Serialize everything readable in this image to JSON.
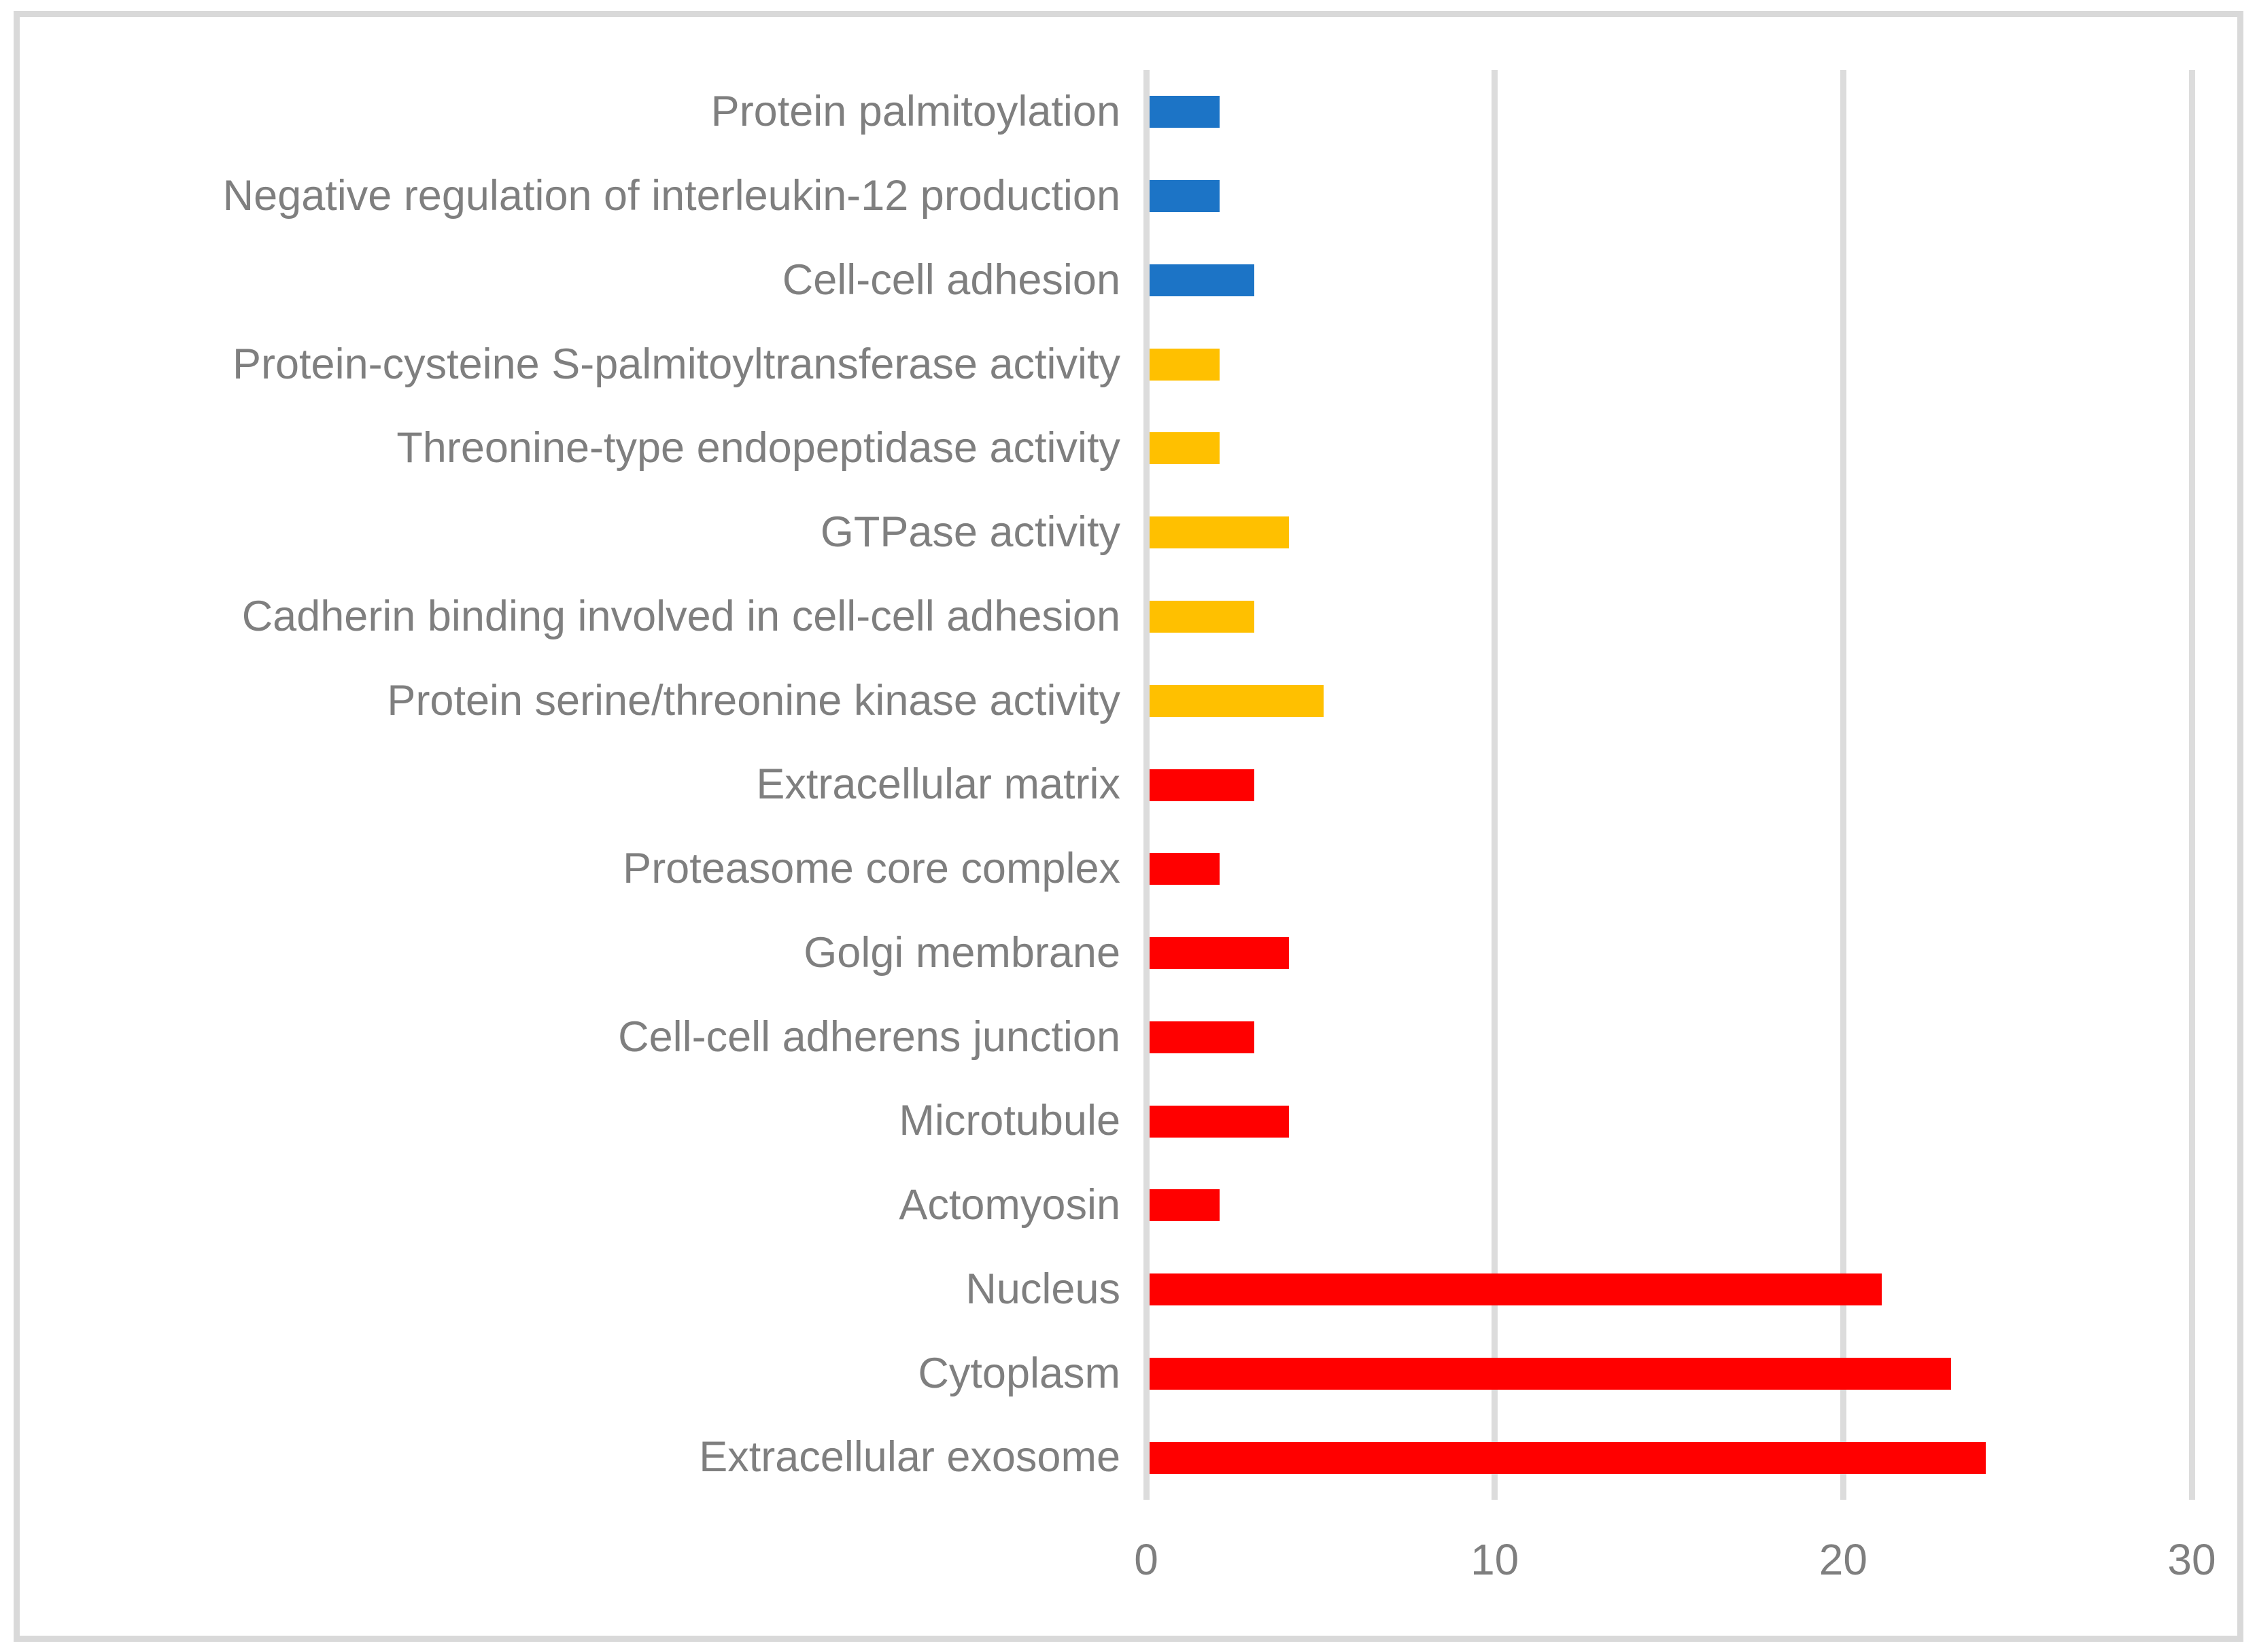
{
  "figure": {
    "background_color": "#ffffff",
    "border_color": "#d9d9d9",
    "gridline_color": "#dcdcdc",
    "text_color": "#7f7f7f"
  },
  "chart_data": {
    "type": "bar",
    "orientation": "horizontal",
    "title": "",
    "xlabel": "",
    "ylabel": "",
    "xlim": [
      0,
      30
    ],
    "x_ticks": [
      "0",
      "10",
      "20",
      "30"
    ],
    "x_tick_values": [
      0,
      10,
      20,
      30
    ],
    "grid": true,
    "legend": null,
    "categories": [
      "Protein palmitoylation",
      "Negative regulation of interleukin-12 production",
      "Cell-cell adhesion",
      "Protein-cysteine S-palmitoyltransferase activity",
      "Threonine-type endopeptidase activity",
      "GTPase activity",
      "Cadherin binding involved in cell-cell adhesion",
      "Protein serine/threonine kinase activity",
      "Extracellular matrix",
      "Proteasome core complex",
      "Golgi membrane",
      "Cell-cell adherens junction",
      "Microtubule",
      "Actomyosin",
      "Nucleus",
      "Cytoplasm",
      "Extracellular exosome"
    ],
    "values": [
      2,
      2,
      3,
      2,
      2,
      4,
      3,
      5,
      3,
      2,
      4,
      3,
      4,
      2,
      21,
      23,
      24
    ],
    "bar_colors": [
      "#1c74c6",
      "#1c74c6",
      "#1c74c6",
      "#ffc000",
      "#ffc000",
      "#ffc000",
      "#ffc000",
      "#ffc000",
      "#ff0000",
      "#ff0000",
      "#ff0000",
      "#ff0000",
      "#ff0000",
      "#ff0000",
      "#ff0000",
      "#ff0000",
      "#ff0000"
    ],
    "series_palette": {
      "blue": "#1c74c6",
      "yellow": "#ffc000",
      "red": "#ff0000"
    }
  }
}
